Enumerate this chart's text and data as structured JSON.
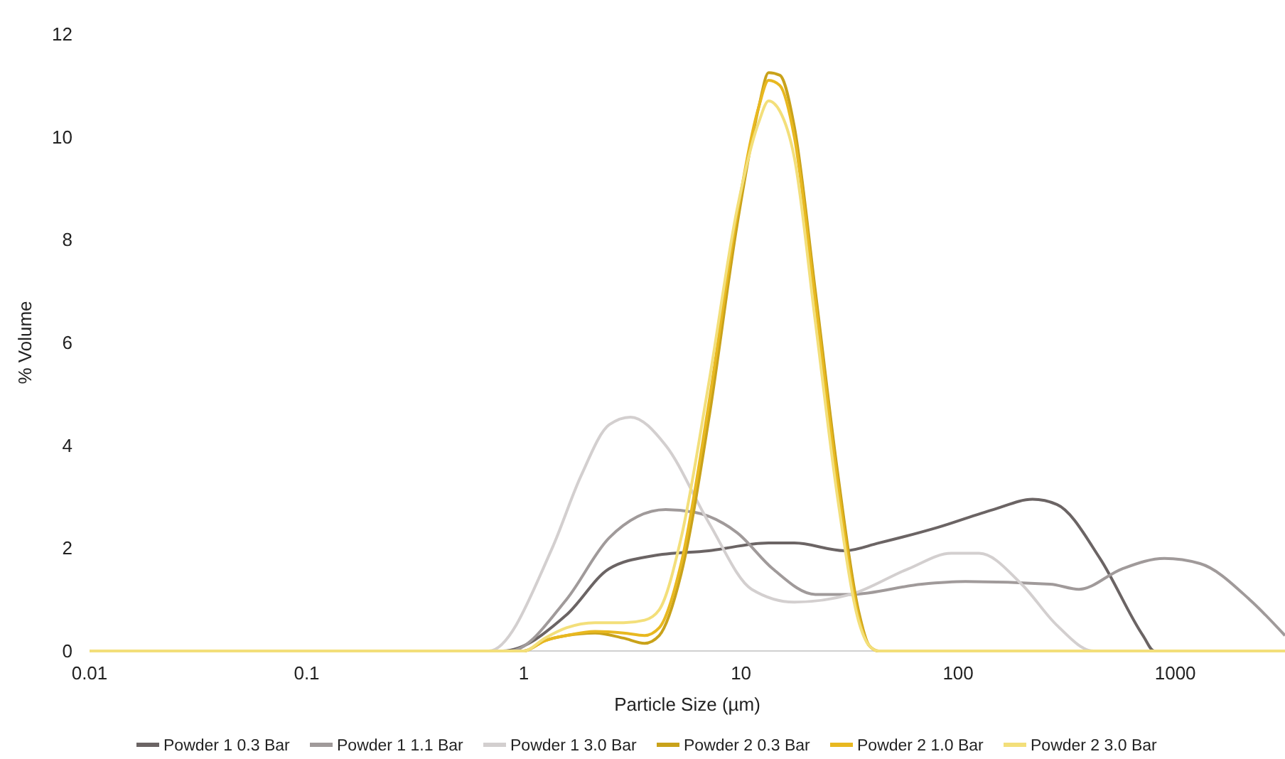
{
  "chart_data": {
    "type": "line",
    "xlabel": "Particle Size (µm)",
    "ylabel": "% Volume",
    "log": "x",
    "xlim": [
      0.01,
      3200
    ],
    "xticks": [
      0.01,
      0.1,
      1,
      10,
      100,
      1000
    ],
    "ylim": [
      0,
      12
    ],
    "yticks": [
      0,
      2,
      4,
      6,
      8,
      10,
      12
    ],
    "grid": false,
    "legend": "bottom",
    "line_style": "solid",
    "series": [
      {
        "name": "Powder 1 0.3 Bar",
        "color": "#6b6464",
        "x": [
          0.01,
          0.8,
          1.57,
          2.47,
          3.9,
          7.1,
          13.4,
          17.6,
          30,
          43,
          80,
          145,
          220,
          285,
          450,
          710,
          800,
          3200
        ],
        "values": [
          0,
          0,
          0.7,
          1.6,
          1.85,
          1.95,
          2.1,
          2.1,
          1.95,
          2.1,
          2.4,
          2.75,
          2.95,
          2.85,
          1.8,
          0.3,
          0,
          0
        ]
      },
      {
        "name": "Powder 1 1.1 Bar",
        "color": "#a09a9a",
        "x": [
          0.01,
          0.86,
          1.57,
          2.47,
          4.5,
          6.1,
          9.6,
          14,
          22,
          32,
          68,
          108,
          265,
          360,
          570,
          890,
          1300,
          2200,
          3200
        ],
        "values": [
          0,
          0,
          1,
          2.2,
          2.75,
          2.7,
          2.3,
          1.6,
          1.1,
          1.1,
          1.3,
          1.35,
          1.3,
          1.2,
          1.6,
          1.8,
          1.7,
          1,
          0.3
        ]
      },
      {
        "name": "Powder 1 3.0 Bar",
        "color": "#d3cfcf",
        "x": [
          0.01,
          0.69,
          1.35,
          1.83,
          2.47,
          3.1,
          4.5,
          7.1,
          11.2,
          17.6,
          32,
          59,
          93,
          125,
          196,
          285,
          420,
          3200
        ],
        "values": [
          0,
          0,
          2,
          3.4,
          4.4,
          4.55,
          4,
          2.5,
          1.2,
          0.95,
          1.1,
          1.6,
          1.9,
          1.9,
          1.3,
          0.5,
          0,
          0
        ]
      },
      {
        "name": "Powder 2 0.3 Bar",
        "color": "#c9a21a",
        "x": [
          0.01,
          1,
          1.25,
          1.57,
          2.13,
          2.88,
          3.6,
          4.2,
          5.3,
          7.1,
          9.6,
          12.1,
          13.4,
          15.1,
          17.6,
          22,
          27.8,
          34.7,
          39,
          43,
          3200
        ],
        "values": [
          0,
          0,
          0.2,
          0.3,
          0.35,
          0.25,
          0.15,
          0.3,
          1.5,
          4.5,
          8.3,
          10.6,
          11.25,
          11.2,
          10.2,
          7,
          3.5,
          0.8,
          0.1,
          0,
          0
        ]
      },
      {
        "name": "Powder 2 1.0 Bar",
        "color": "#e8b820",
        "x": [
          0.01,
          1,
          1.25,
          1.57,
          2.13,
          2.88,
          3.6,
          4.2,
          5.3,
          7.1,
          9.6,
          12.1,
          13.4,
          15.1,
          17.6,
          22,
          27.8,
          34.7,
          39,
          43,
          3200
        ],
        "values": [
          0,
          0,
          0.2,
          0.3,
          0.38,
          0.35,
          0.3,
          0.45,
          1.7,
          4.8,
          8.5,
          10.6,
          11.1,
          11,
          10,
          6.8,
          3.3,
          0.7,
          0.1,
          0,
          0
        ]
      },
      {
        "name": "Powder 2 3.0 Bar",
        "color": "#f3df7a",
        "x": [
          0.01,
          1,
          1.25,
          1.57,
          2.13,
          2.88,
          3.6,
          4.2,
          5.3,
          7.1,
          9.6,
          12.1,
          13.4,
          15.1,
          17.6,
          22,
          27.8,
          34.7,
          39,
          43,
          3200
        ],
        "values": [
          0,
          0,
          0.25,
          0.45,
          0.55,
          0.55,
          0.6,
          0.8,
          2.2,
          5.2,
          8.6,
          10.3,
          10.7,
          10.5,
          9.6,
          6.4,
          3,
          0.6,
          0.1,
          0,
          0
        ]
      }
    ]
  }
}
